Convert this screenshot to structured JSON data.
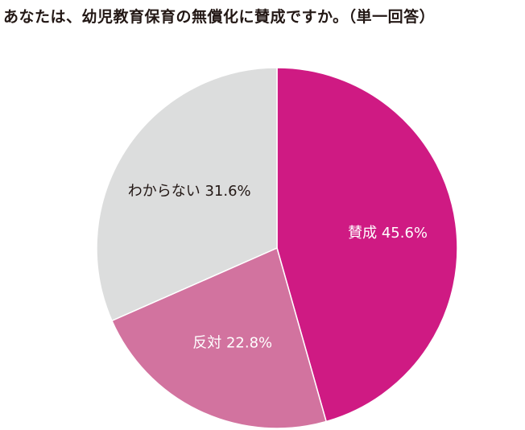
{
  "chart_data": {
    "type": "pie",
    "title": "あなたは、幼児教育保育の無償化に賛成ですか。（単一回答）",
    "slices": [
      {
        "label": "賛成",
        "value": 45.6,
        "display": "賛成 45.6%",
        "color": "#cf1a83",
        "text_color": "#ffffff"
      },
      {
        "label": "反対",
        "value": 22.8,
        "display": "反対 22.8%",
        "color": "#d2739f",
        "text_color": "#ffffff"
      },
      {
        "label": "わからない",
        "value": 31.6,
        "display": "わからない 31.6%",
        "color": "#dcdddd",
        "text_color": "#231815"
      }
    ],
    "start": "12 o'clock",
    "direction": "clockwise"
  }
}
